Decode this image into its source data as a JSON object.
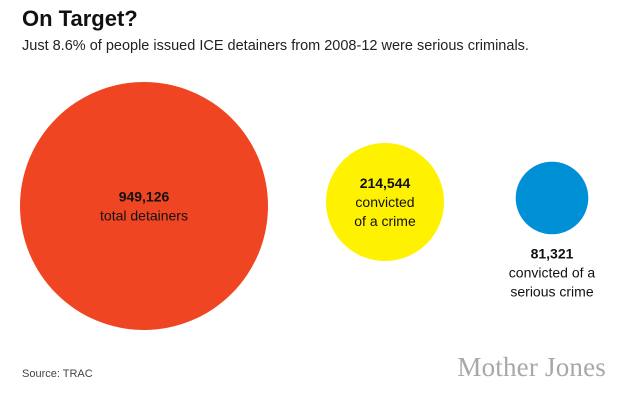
{
  "header": {
    "title": "On Target?",
    "subtitle": "Just 8.6% of people issued ICE detainers from 2008-12 were serious criminals."
  },
  "footer": {
    "source": "Source: TRAC",
    "brand": "Mother Jones"
  },
  "chart_data": {
    "type": "bubble",
    "title": "On Target?",
    "subtitle": "Just 8.6% of people issued ICE detainers from 2008-12 were serious criminals.",
    "items": [
      {
        "value": 949126,
        "value_label": "949,126",
        "label_lines": [
          "total detainers"
        ],
        "color": "#ef4523",
        "label_position": "inside"
      },
      {
        "value": 214544,
        "value_label": "214,544",
        "label_lines": [
          "convicted",
          "of a crime"
        ],
        "color": "#fff200",
        "label_position": "inside"
      },
      {
        "value": 81321,
        "value_label": "81,321",
        "label_lines": [
          "convicted of a",
          "serious crime"
        ],
        "color": "#0090d6",
        "label_position": "below"
      }
    ]
  }
}
